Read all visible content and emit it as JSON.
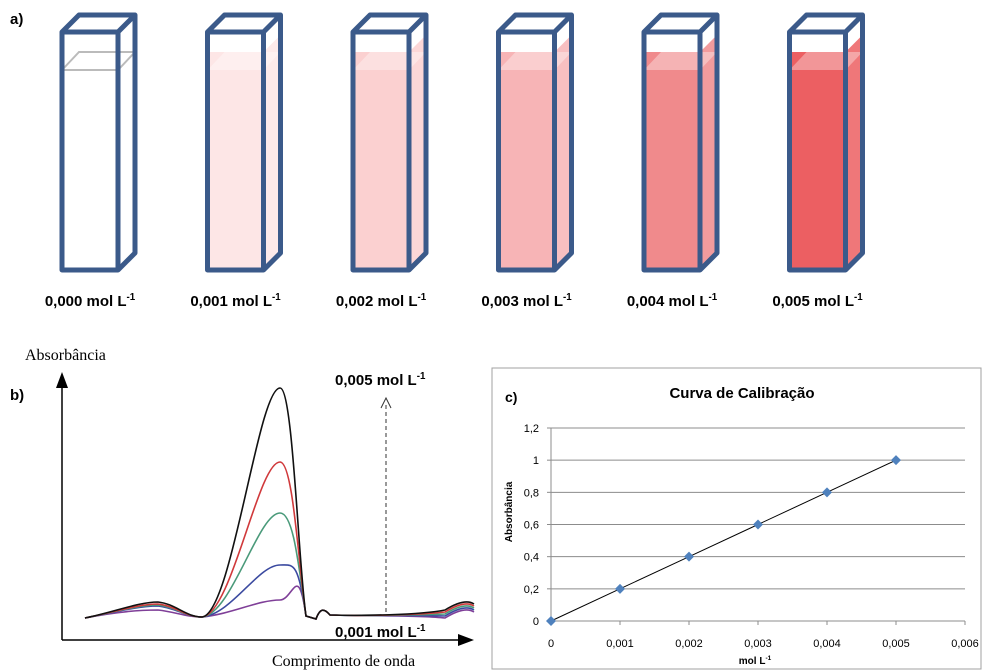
{
  "panel_a": {
    "label": "a)",
    "cuvettes": [
      {
        "text": "0,000 mol L",
        "sup": "-1",
        "color": "#ffffff"
      },
      {
        "text": "0,001 mol L",
        "sup": "-1",
        "color": "#fde6e6"
      },
      {
        "text": "0,002 mol L",
        "sup": "-1",
        "color": "#fbd0d0"
      },
      {
        "text": "0,003 mol L",
        "sup": "-1",
        "color": "#f7b4b6"
      },
      {
        "text": "0,004 mol L",
        "sup": "-1",
        "color": "#f08a8c"
      },
      {
        "text": "0,005 mol L",
        "sup": "-1",
        "color": "#ec5f62"
      }
    ]
  },
  "panel_b": {
    "label": "b)",
    "y_axis_label": "Absorbância",
    "x_axis_label": "Comprimento de onda",
    "top_annotation": {
      "text": "0,005 mol L",
      "sup": "-1"
    },
    "bottom_annotation": {
      "text": "0,001 mol L",
      "sup": "-1"
    }
  },
  "chart_data": {
    "type": "scatter",
    "panel_label": "c)",
    "title": "Curva de Calibração",
    "x_label": "mol L",
    "x_label_sup": "-1",
    "y_label": "Absorbância",
    "x": [
      0,
      0.001,
      0.002,
      0.003,
      0.004,
      0.005
    ],
    "values": [
      0,
      0.2,
      0.4,
      0.6,
      0.8,
      1
    ],
    "color": "#4f81bd",
    "trendline": true,
    "grid": true,
    "xlim": [
      0,
      0.006
    ],
    "ylim": [
      0,
      1.2
    ],
    "xticks": [
      0,
      {
        "value": 0.001,
        "label": "0,001"
      },
      {
        "value": 0.002,
        "label": "0,002"
      },
      {
        "value": 0.003,
        "label": "0,003"
      },
      {
        "value": 0.004,
        "label": "0,004"
      },
      {
        "value": 0.005,
        "label": "0,005"
      },
      {
        "value": 0.006,
        "label": "0,006"
      }
    ],
    "yticks": [
      0,
      {
        "value": 0.2,
        "label": "0,2"
      },
      {
        "value": 0.4,
        "label": "0,4"
      },
      {
        "value": 0.6,
        "label": "0,6"
      },
      {
        "value": 0.8,
        "label": "0,8"
      },
      1,
      {
        "value": 1.2,
        "label": "1,2"
      }
    ]
  }
}
